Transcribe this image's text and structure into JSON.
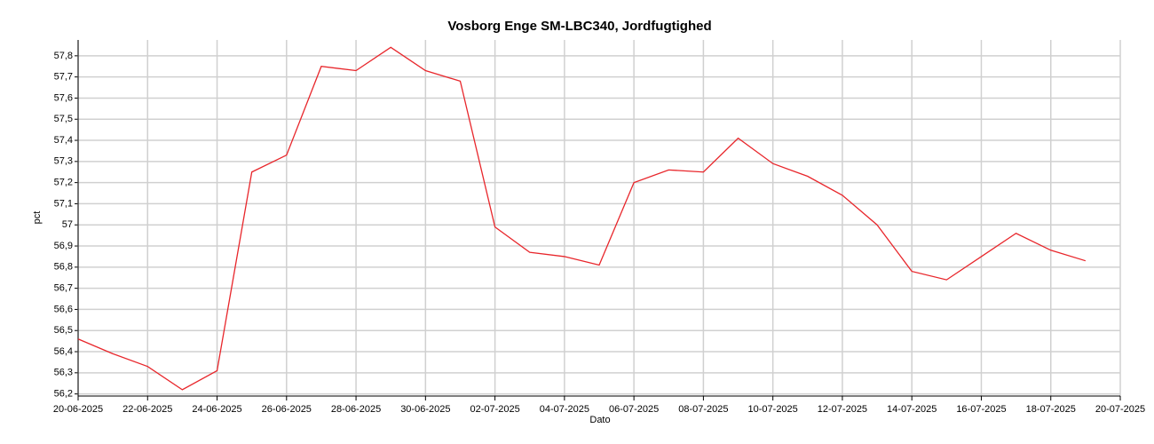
{
  "chart_data": {
    "type": "line",
    "title": "Vosborg Enge SM-LBC340, Jordfugtighed",
    "x_label": "Dato",
    "y_label": "pct",
    "x": [
      "20-06-2025",
      "21-06-2025",
      "22-06-2025",
      "23-06-2025",
      "24-06-2025",
      "25-06-2025",
      "26-06-2025",
      "27-06-2025",
      "28-06-2025",
      "29-06-2025",
      "30-06-2025",
      "01-07-2025",
      "02-07-2025",
      "03-07-2025",
      "04-07-2025",
      "05-07-2025",
      "06-07-2025",
      "07-07-2025",
      "08-07-2025",
      "09-07-2025",
      "10-07-2025",
      "11-07-2025",
      "12-07-2025",
      "13-07-2025",
      "14-07-2025",
      "15-07-2025",
      "16-07-2025",
      "17-07-2025",
      "18-07-2025",
      "19-07-2025"
    ],
    "series": [
      {
        "name": "Jordfugtighed",
        "color": "#e8262b",
        "values": [
          56.46,
          56.39,
          56.33,
          56.22,
          56.31,
          57.25,
          57.33,
          57.75,
          57.73,
          57.84,
          57.73,
          57.68,
          56.99,
          56.87,
          56.85,
          56.81,
          57.2,
          57.26,
          57.25,
          57.41,
          57.29,
          57.23,
          57.14,
          57.0,
          56.78,
          56.74,
          56.85,
          56.96,
          56.88,
          56.83
        ]
      }
    ],
    "xlim": [
      "20-06-2025",
      "20-07-2025"
    ],
    "xticks": [
      "20-06-2025",
      "22-06-2025",
      "24-06-2025",
      "26-06-2025",
      "28-06-2025",
      "30-06-2025",
      "02-07-2025",
      "04-07-2025",
      "06-07-2025",
      "08-07-2025",
      "10-07-2025",
      "12-07-2025",
      "14-07-2025",
      "16-07-2025",
      "18-07-2025",
      "20-07-2025"
    ],
    "ylim": [
      56.19,
      57.875
    ],
    "yticks": [
      {
        "value": 56.2,
        "label": "56,2"
      },
      {
        "value": 56.3,
        "label": "56,3"
      },
      {
        "value": 56.4,
        "label": "56,4"
      },
      {
        "value": 56.5,
        "label": "56,5"
      },
      {
        "value": 56.6,
        "label": "56,6"
      },
      {
        "value": 56.7,
        "label": "56,7"
      },
      {
        "value": 56.8,
        "label": "56,8"
      },
      {
        "value": 56.9,
        "label": "56,9"
      },
      57,
      {
        "value": 57.1,
        "label": "57,1"
      },
      {
        "value": 57.2,
        "label": "57,2"
      },
      {
        "value": 57.3,
        "label": "57,3"
      },
      {
        "value": 57.4,
        "label": "57,4"
      },
      {
        "value": 57.5,
        "label": "57,5"
      },
      {
        "value": 57.6,
        "label": "57,6"
      },
      {
        "value": 57.7,
        "label": "57,7"
      },
      {
        "value": 57.8,
        "label": "57,8"
      }
    ],
    "grid": true
  }
}
